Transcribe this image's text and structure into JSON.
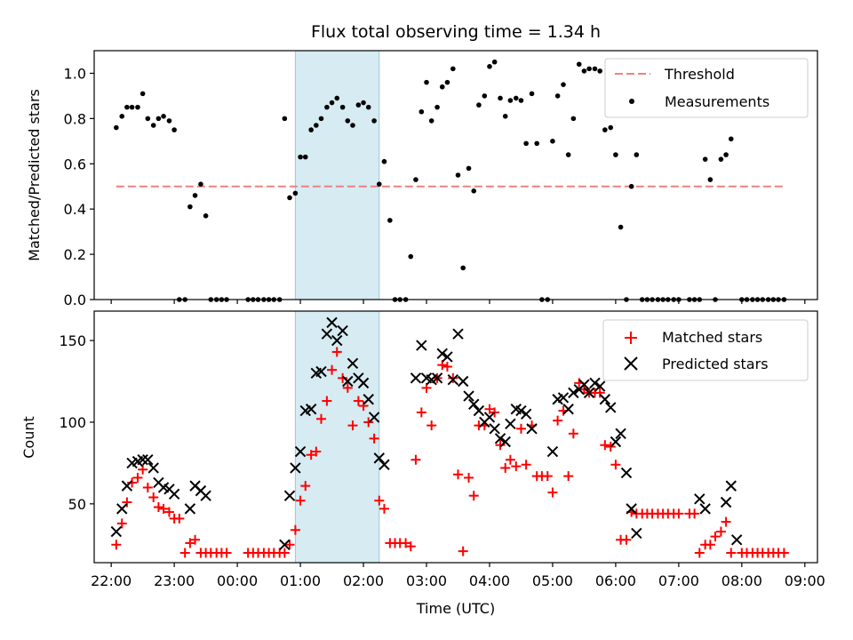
{
  "chart_data": [
    {
      "type": "scatter",
      "title": "Flux total observing time = 1.34 h",
      "xlabel": "",
      "ylabel": "Matched/Predicted stars",
      "xlim": [
        21.73,
        33.2
      ],
      "ylim": [
        0,
        1.1
      ],
      "yticks": [
        0.0,
        0.2,
        0.4,
        0.6,
        0.8,
        1.0
      ],
      "ytick_labels": [
        "0.0",
        "0.2",
        "0.4",
        "0.6",
        "0.8",
        "1.0"
      ],
      "xticks": [
        22,
        23,
        24,
        25,
        26,
        27,
        28,
        29,
        30,
        31,
        32,
        33
      ],
      "shaded_span": [
        24.92,
        26.25
      ],
      "legend_position": "top-right",
      "threshold": {
        "name": "Threshold",
        "value": 0.5,
        "x": [
          22.08,
          32.67
        ],
        "color": "#f08080"
      },
      "series": [
        {
          "name": "Measurements",
          "color": "#000000",
          "marker": "dot",
          "x": [
            22.08,
            22.17,
            22.25,
            22.33,
            22.42,
            22.5,
            22.58,
            22.67,
            22.75,
            22.83,
            22.92,
            23.0,
            23.08,
            23.17,
            23.25,
            23.33,
            23.42,
            23.5,
            23.58,
            23.67,
            23.75,
            23.83,
            24.17,
            24.25,
            24.33,
            24.42,
            24.5,
            24.58,
            24.67,
            24.75,
            24.83,
            24.92,
            25.0,
            25.08,
            25.17,
            25.25,
            25.33,
            25.42,
            25.5,
            25.58,
            25.67,
            25.75,
            25.83,
            25.92,
            26.0,
            26.08,
            26.17,
            26.25,
            26.33,
            26.42,
            26.5,
            26.58,
            26.67,
            26.75,
            26.83,
            26.92,
            27.0,
            27.08,
            27.17,
            27.25,
            27.33,
            27.42,
            27.5,
            27.58,
            27.67,
            27.75,
            27.83,
            27.92,
            28.0,
            28.08,
            28.17,
            28.25,
            28.33,
            28.42,
            28.5,
            28.58,
            28.67,
            28.75,
            28.83,
            28.92,
            29.0,
            29.08,
            29.17,
            29.25,
            29.33,
            29.42,
            29.5,
            29.58,
            29.67,
            29.75,
            29.83,
            29.92,
            30.0,
            30.08,
            30.17,
            30.25,
            30.33,
            30.42,
            30.5,
            30.58,
            30.67,
            30.75,
            30.83,
            30.92,
            31.0,
            31.17,
            31.25,
            31.33,
            31.42,
            31.5,
            31.58,
            31.67,
            31.75,
            31.83,
            32.0,
            32.08,
            32.17,
            32.25,
            32.33,
            32.42,
            32.5,
            32.58,
            32.67
          ],
          "y": [
            0.76,
            0.81,
            0.85,
            0.85,
            0.85,
            0.91,
            0.8,
            0.77,
            0.8,
            0.81,
            0.79,
            0.75,
            0.0,
            0.0,
            0.41,
            0.46,
            0.51,
            0.37,
            0.0,
            0.0,
            0.0,
            0.0,
            0.0,
            0.0,
            0.0,
            0.0,
            0.0,
            0.0,
            0.0,
            0.8,
            0.45,
            0.47,
            0.63,
            0.63,
            0.75,
            0.77,
            0.8,
            0.85,
            0.87,
            0.89,
            0.85,
            0.79,
            0.77,
            0.86,
            0.87,
            0.85,
            0.79,
            0.51,
            0.61,
            0.35,
            0.0,
            0.0,
            0.0,
            0.19,
            0.53,
            0.83,
            0.96,
            0.79,
            0.85,
            0.94,
            0.96,
            1.02,
            0.55,
            0.14,
            0.58,
            0.48,
            0.86,
            0.9,
            1.03,
            1.05,
            0.89,
            0.81,
            0.88,
            0.89,
            0.88,
            0.69,
            0.91,
            0.69,
            0.0,
            0.0,
            0.7,
            0.9,
            0.95,
            0.64,
            0.8,
            1.04,
            1.01,
            1.02,
            1.02,
            1.01,
            0.75,
            0.76,
            0.64,
            0.32,
            0.0,
            0.5,
            0.64,
            0.0,
            0.0,
            0.0,
            0.0,
            0.0,
            0.0,
            0.0,
            0.0,
            0.0,
            0.0,
            0.0,
            0.62,
            0.53,
            0.0,
            0.62,
            0.64,
            0.71,
            0.0,
            0.0,
            0.0,
            0.0,
            0.0,
            0.0,
            0.0,
            0.0,
            0.0
          ]
        }
      ]
    },
    {
      "type": "scatter",
      "title": "",
      "xlabel": "Time (UTC)",
      "ylabel": "Count",
      "xlim": [
        21.73,
        33.2
      ],
      "ylim": [
        14,
        168
      ],
      "yticks": [
        50,
        100,
        150
      ],
      "ytick_labels": [
        "50",
        "100",
        "150"
      ],
      "xticks": [
        22,
        23,
        24,
        25,
        26,
        27,
        28,
        29,
        30,
        31,
        32,
        33
      ],
      "xtick_labels": [
        "22:00",
        "23:00",
        "00:00",
        "01:00",
        "02:00",
        "03:00",
        "04:00",
        "05:00",
        "06:00",
        "07:00",
        "08:00",
        "09:00"
      ],
      "shaded_span": [
        24.92,
        26.25
      ],
      "legend_position": "top-right",
      "series": [
        {
          "name": "Matched stars",
          "color": "#ff0000",
          "marker": "plus",
          "x": [
            22.08,
            22.17,
            22.25,
            22.33,
            22.42,
            22.5,
            22.58,
            22.67,
            22.75,
            22.83,
            22.92,
            23.0,
            23.08,
            23.17,
            23.25,
            23.33,
            23.42,
            23.5,
            23.58,
            23.67,
            23.75,
            23.83,
            24.17,
            24.25,
            24.33,
            24.42,
            24.5,
            24.58,
            24.67,
            24.75,
            24.83,
            24.92,
            25.0,
            25.08,
            25.17,
            25.25,
            25.33,
            25.42,
            25.5,
            25.58,
            25.67,
            25.75,
            25.83,
            25.92,
            26.0,
            26.08,
            26.17,
            26.25,
            26.33,
            26.42,
            26.5,
            26.58,
            26.67,
            26.75,
            26.83,
            26.92,
            27.0,
            27.08,
            27.17,
            27.25,
            27.33,
            27.42,
            27.5,
            27.58,
            27.67,
            27.75,
            27.83,
            27.92,
            28.0,
            28.08,
            28.17,
            28.25,
            28.33,
            28.42,
            28.5,
            28.58,
            28.67,
            28.75,
            28.83,
            28.92,
            29.0,
            29.08,
            29.17,
            29.25,
            29.33,
            29.42,
            29.5,
            29.58,
            29.67,
            29.75,
            29.83,
            29.92,
            30.0,
            30.08,
            30.17,
            30.25,
            30.33,
            30.42,
            30.5,
            30.58,
            30.67,
            30.75,
            30.83,
            30.92,
            31.0,
            31.17,
            31.25,
            31.33,
            31.42,
            31.5,
            31.58,
            31.67,
            31.75,
            31.83,
            32.0,
            32.08,
            32.17,
            32.25,
            32.33,
            32.42,
            32.5,
            32.58,
            32.67
          ],
          "y": [
            25,
            38,
            51,
            63,
            66,
            71,
            60,
            54,
            48,
            47,
            45,
            41,
            41,
            20,
            26,
            28,
            20,
            20,
            20,
            20,
            20,
            20,
            20,
            20,
            20,
            20,
            20,
            20,
            20,
            20,
            25,
            34,
            52,
            61,
            80,
            82,
            102,
            113,
            132,
            143,
            127,
            121,
            98,
            113,
            110,
            100,
            90,
            52,
            47,
            26,
            26,
            26,
            26,
            24,
            77,
            106,
            121,
            98,
            127,
            135,
            134,
            127,
            68,
            21,
            66,
            55,
            98,
            98,
            108,
            106,
            86,
            72,
            77,
            73,
            96,
            74,
            98,
            67,
            67,
            67,
            57,
            101,
            107,
            67,
            93,
            124,
            120,
            118,
            118,
            118,
            86,
            85,
            74,
            28,
            28,
            45,
            44,
            44,
            44,
            44,
            44,
            44,
            44,
            44,
            44,
            44,
            44,
            20,
            25,
            25,
            30,
            33,
            39,
            20,
            20,
            20,
            20,
            20,
            20,
            20,
            20,
            20,
            20
          ]
        },
        {
          "name": "Predicted stars",
          "color": "#000000",
          "marker": "x",
          "x": [
            22.08,
            22.17,
            22.25,
            22.33,
            22.42,
            22.5,
            22.58,
            22.67,
            22.75,
            22.83,
            22.92,
            23.0,
            23.25,
            23.33,
            23.42,
            23.5,
            24.75,
            24.83,
            24.92,
            25.0,
            25.08,
            25.17,
            25.25,
            25.33,
            25.42,
            25.5,
            25.58,
            25.67,
            25.75,
            25.83,
            25.92,
            26.0,
            26.08,
            26.17,
            26.25,
            26.33,
            26.83,
            26.92,
            27.0,
            27.08,
            27.17,
            27.25,
            27.33,
            27.42,
            27.5,
            27.58,
            27.67,
            27.75,
            27.83,
            27.92,
            28.0,
            28.08,
            28.17,
            28.25,
            28.33,
            28.42,
            28.5,
            28.58,
            28.67,
            29.0,
            29.08,
            29.17,
            29.25,
            29.33,
            29.42,
            29.5,
            29.58,
            29.67,
            29.75,
            29.83,
            29.92,
            30.0,
            30.08,
            30.17,
            30.25,
            30.33,
            31.33,
            31.42,
            31.75,
            31.83,
            31.92
          ],
          "y": [
            33,
            47,
            61,
            75,
            76,
            77,
            77,
            72,
            63,
            60,
            59,
            56,
            47,
            61,
            58,
            55,
            25,
            55,
            72,
            82,
            107,
            108,
            130,
            131,
            154,
            161,
            150,
            156,
            125,
            136,
            127,
            124,
            114,
            103,
            78,
            74,
            127,
            147,
            127,
            126,
            127,
            142,
            140,
            126,
            154,
            125,
            116,
            111,
            107,
            100,
            103,
            96,
            90,
            88,
            99,
            108,
            107,
            105,
            96,
            82,
            114,
            115,
            108,
            118,
            120,
            123,
            118,
            124,
            122,
            114,
            109,
            88,
            93,
            69,
            47,
            32,
            53,
            47,
            51,
            61,
            28
          ]
        }
      ]
    }
  ]
}
